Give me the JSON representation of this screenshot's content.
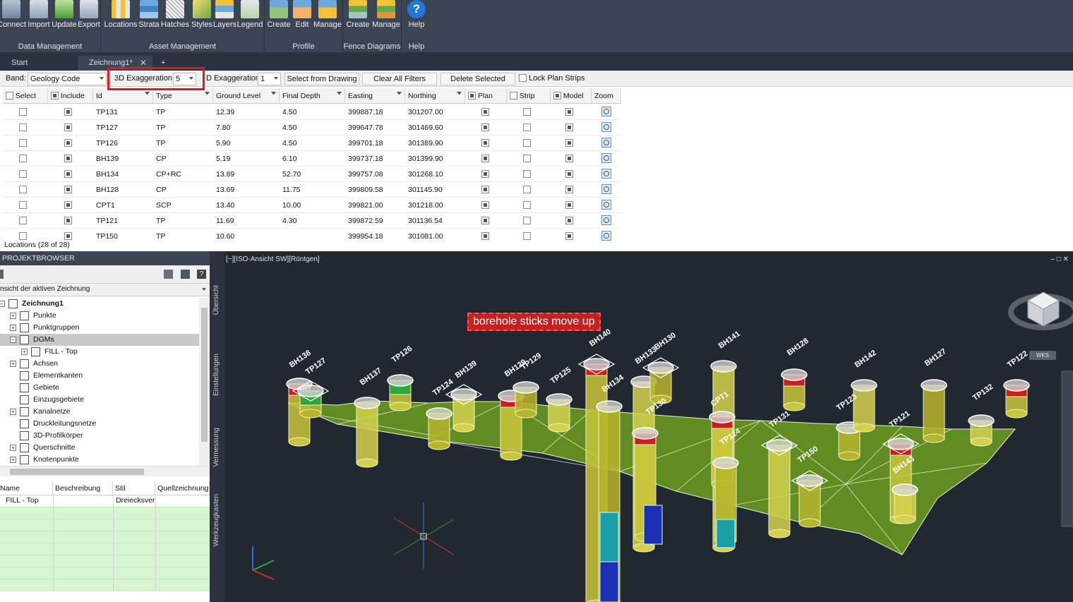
{
  "ribbon": {
    "groups": [
      {
        "label": "Data Management",
        "buttons": [
          "Connect",
          "Import",
          "Update",
          "Export"
        ]
      },
      {
        "label": "Asset Management",
        "buttons": [
          "Locations",
          "Strata",
          "Hatches",
          "Styles",
          "Layers",
          "Legend"
        ]
      },
      {
        "label": "Profile",
        "buttons": [
          "Create",
          "Edit",
          "Manage"
        ]
      },
      {
        "label": "Fence Diagrams",
        "buttons": [
          "Create",
          "Manage"
        ]
      },
      {
        "label": "Help",
        "buttons": [
          "Help"
        ]
      }
    ]
  },
  "tabs": {
    "start": "Start",
    "drawing": "Zeichnung1*",
    "add": "+",
    "close": "✕"
  },
  "filterbar": {
    "band_label": "Band:",
    "band_value": "Geology Code",
    "exag3d_label": "3D Exaggeration:",
    "exag3d_value": "5",
    "exag2d_label": "D Exaggeration:",
    "exag2d_value": "1",
    "select_from_drawing": "Select from Drawing",
    "clear_all_filters": "Clear All Filters",
    "delete_selected": "Delete Selected",
    "lock_plan_strips": "Lock Plan Strips"
  },
  "grid": {
    "headers": [
      "Select",
      "Include",
      "Id",
      "Type",
      "Ground Level",
      "Final Depth",
      "Easting",
      "Northing",
      "Plan",
      "Strip",
      "Model",
      "Zoom"
    ],
    "rows": [
      {
        "id": "TP131",
        "type": "TP",
        "ground": "12.39",
        "depth": "4.50",
        "easting": "399887.18",
        "northing": "301207.00"
      },
      {
        "id": "TP127",
        "type": "TP",
        "ground": "7.80",
        "depth": "4.50",
        "easting": "399647.78",
        "northing": "301469.60"
      },
      {
        "id": "TP126",
        "type": "TP",
        "ground": "5.90",
        "depth": "4.50",
        "easting": "399701.18",
        "northing": "301389.90"
      },
      {
        "id": "BH139",
        "type": "CP",
        "ground": "5.19",
        "depth": "6.10",
        "easting": "399737.18",
        "northing": "301399.90"
      },
      {
        "id": "BH134",
        "type": "CP+RC",
        "ground": "13.89",
        "depth": "52.70",
        "easting": "399757.08",
        "northing": "301268.10"
      },
      {
        "id": "BH128",
        "type": "CP",
        "ground": "13.69",
        "depth": "11.75",
        "easting": "399809.58",
        "northing": "301145.90"
      },
      {
        "id": "CPT1",
        "type": "SCP",
        "ground": "13.40",
        "depth": "10.00",
        "easting": "399821.00",
        "northing": "301218.00"
      },
      {
        "id": "TP121",
        "type": "TP",
        "ground": "11.69",
        "depth": "4.30",
        "easting": "399872.59",
        "northing": "301136.54"
      },
      {
        "id": "TP150",
        "type": "TP",
        "ground": "10.60",
        "depth": "",
        "easting": "399954.18",
        "northing": "301081.00"
      }
    ],
    "status": "Locations (28 of 28)"
  },
  "browser": {
    "title": "PROJEKTBROWSER",
    "combo": "nsicht der aktiven Zeichnung",
    "tree": [
      "Zeichnung1",
      "Punkte",
      "Punktgruppen",
      "DGMs",
      "FILL - Top",
      "Achsen",
      "Elementkanten",
      "Gebiete",
      "Einzugsgebiete",
      "Kanalnetze",
      "Druckleitungsnetze",
      "3D-Profilkörper",
      "Querschnitte",
      "Knotenpunkte"
    ],
    "props_headers": [
      "Name",
      "Beschreibung",
      "Stil",
      "Quellzeichnung"
    ],
    "props_row": {
      "name": "FILL - Top",
      "desc": "",
      "style": "Dreiecksver",
      "source": ""
    },
    "side_tabs": [
      "Übersicht",
      "Einstellungen",
      "Vermessung",
      "Werkzeugkasten"
    ]
  },
  "viewport": {
    "label": "[−][ISO-Ansicht SW][Röntgen]",
    "annotation": "borehole sticks move up",
    "wks": "WKS",
    "borehole_labels": [
      "BH138",
      "TP127",
      "BH137",
      "TP126",
      "TP124",
      "BH139",
      "BH129",
      "TP129",
      "TP125",
      "BH140",
      "BH134",
      "BH133",
      "TP130",
      "BH130",
      "BH141",
      "CPT1",
      "TP124",
      "TP131",
      "BH128",
      "TP123",
      "BH142",
      "TP121",
      "BH127",
      "TP132",
      "TP122",
      "TP150",
      "BH143"
    ]
  }
}
